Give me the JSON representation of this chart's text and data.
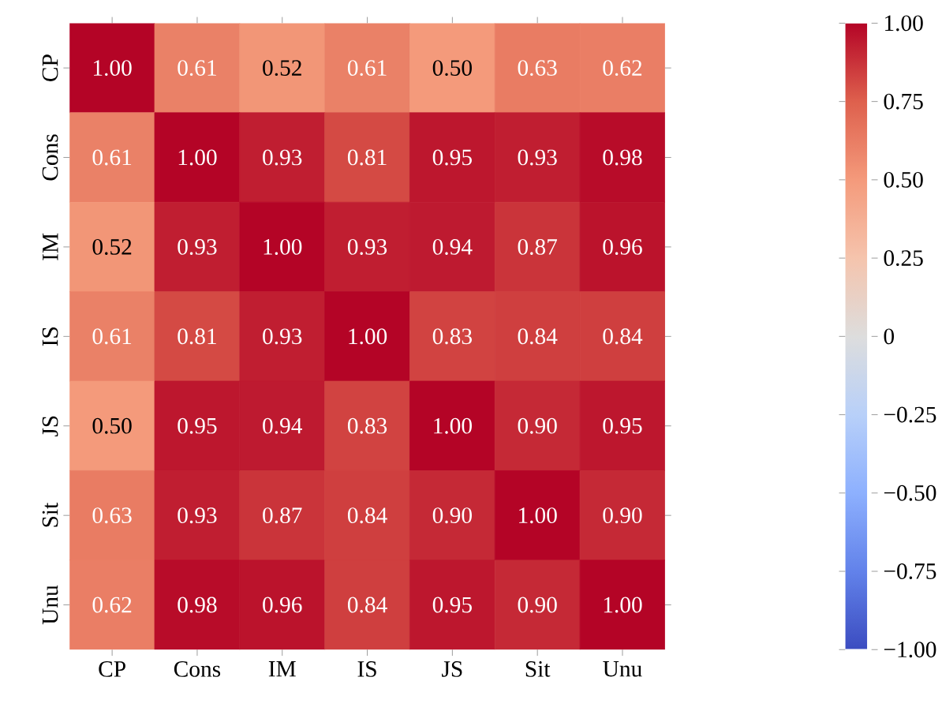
{
  "chart_data": {
    "type": "heatmap",
    "categories": [
      "CP",
      "Cons",
      "IM",
      "IS",
      "JS",
      "Sit",
      "Unu"
    ],
    "y_categories": [
      "CP",
      "Cons",
      "IM",
      "IS",
      "JS",
      "Sit",
      "Unu"
    ],
    "cells": [
      [
        1.0,
        0.61,
        0.52,
        0.61,
        0.5,
        0.63,
        0.62
      ],
      [
        0.61,
        1.0,
        0.93,
        0.81,
        0.95,
        0.93,
        0.98
      ],
      [
        0.52,
        0.93,
        1.0,
        0.93,
        0.94,
        0.87,
        0.96
      ],
      [
        0.61,
        0.81,
        0.93,
        1.0,
        0.83,
        0.84,
        0.84
      ],
      [
        0.5,
        0.95,
        0.94,
        0.83,
        1.0,
        0.9,
        0.95
      ],
      [
        0.63,
        0.93,
        0.87,
        0.84,
        0.9,
        1.0,
        0.9
      ],
      [
        0.62,
        0.98,
        0.96,
        0.84,
        0.95,
        0.9,
        1.0
      ]
    ],
    "cell_labels": [
      [
        "1.00",
        "0.61",
        "0.52",
        "0.61",
        "0.50",
        "0.63",
        "0.62"
      ],
      [
        "0.61",
        "1.00",
        "0.93",
        "0.81",
        "0.95",
        "0.93",
        "0.98"
      ],
      [
        "0.52",
        "0.93",
        "1.00",
        "0.93",
        "0.94",
        "0.87",
        "0.96"
      ],
      [
        "0.61",
        "0.81",
        "0.93",
        "1.00",
        "0.83",
        "0.84",
        "0.84"
      ],
      [
        "0.50",
        "0.95",
        "0.94",
        "0.83",
        "1.00",
        "0.90",
        "0.95"
      ],
      [
        "0.63",
        "0.93",
        "0.87",
        "0.84",
        "0.90",
        "1.00",
        "0.90"
      ],
      [
        "0.62",
        "0.98",
        "0.96",
        "0.84",
        "0.95",
        "0.90",
        "1.00"
      ]
    ],
    "clim": [
      -1,
      1
    ],
    "cticks": [
      {
        "value": -1,
        "label": "−1.00"
      },
      {
        "value": -0.75,
        "label": "−0.75"
      },
      {
        "value": -0.5,
        "label": "−0.50"
      },
      {
        "value": -0.25,
        "label": "−0.25"
      },
      0,
      {
        "value": 0.25,
        "label": "0.25"
      },
      {
        "value": 0.5,
        "label": "0.50"
      },
      {
        "value": 0.75,
        "label": "0.75"
      },
      {
        "value": 1,
        "label": "1.00"
      }
    ]
  }
}
